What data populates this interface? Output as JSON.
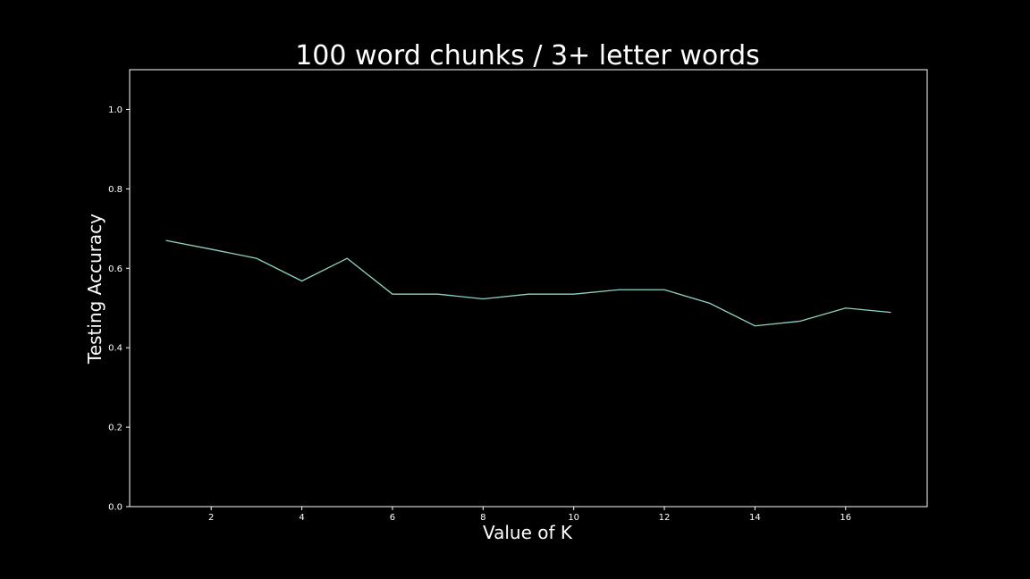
{
  "chart_data": {
    "type": "line",
    "title": "100 word chunks / 3+ letter words",
    "xlabel": "Value of K",
    "ylabel": "Testing Accuracy",
    "xlim": [
      0.2,
      17.8
    ],
    "ylim": [
      0.0,
      1.1
    ],
    "xticks": [
      2,
      4,
      6,
      8,
      10,
      12,
      14,
      16
    ],
    "yticks": [
      0.0,
      0.2,
      0.4,
      0.6,
      0.8,
      1.0
    ],
    "ytick_labels": [
      "0.0",
      "0.2",
      "0.4",
      "0.6",
      "0.8",
      "1.0"
    ],
    "grid": false,
    "line_color": "#8dd3c7",
    "background_color": "#000000",
    "axes_color": "#ffffff",
    "series": [
      {
        "x": [
          1,
          2,
          3,
          4,
          5,
          6,
          7,
          8,
          9,
          10,
          11,
          12,
          13,
          14,
          15,
          16,
          17
        ],
        "values": [
          0.67,
          0.648,
          0.625,
          0.568,
          0.625,
          0.535,
          0.535,
          0.523,
          0.535,
          0.535,
          0.546,
          0.546,
          0.512,
          0.455,
          0.467,
          0.5,
          0.489
        ]
      }
    ]
  }
}
